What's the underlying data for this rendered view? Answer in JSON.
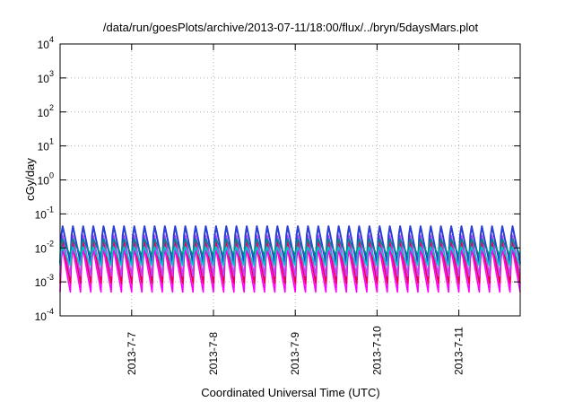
{
  "chart_data": {
    "type": "line",
    "title": "/data/run/goesPlots/archive/2013-07-11/18:00/flux/../bryn/5daysMars.plot",
    "xlabel": "Coordinated Universal Time (UTC)",
    "ylabel": "cGy/day",
    "y_scale": "log",
    "ylim": [
      0.0001,
      10000
    ],
    "y_ticks": [
      {
        "base": "10",
        "exp": "-4"
      },
      {
        "base": "10",
        "exp": "-3"
      },
      {
        "base": "10",
        "exp": "-2"
      },
      {
        "base": "10",
        "exp": "-1"
      },
      {
        "base": "10",
        "exp": "0"
      },
      {
        "base": "10",
        "exp": "1"
      },
      {
        "base": "10",
        "exp": "2"
      },
      {
        "base": "10",
        "exp": "3"
      },
      {
        "base": "10",
        "exp": "4"
      }
    ],
    "x_range": [
      "2013-07-06 03:00",
      "2013-07-11 18:00"
    ],
    "x_ticks": [
      "2013-7-7",
      "2013-7-8",
      "2013-7-9",
      "2013-7-10",
      "2013-7-11"
    ],
    "grid": true,
    "legend": "none",
    "sawtooth_period_hours": 3,
    "series": [
      {
        "color": "#ff00ff",
        "peak": 0.012,
        "trough": 0.0005
      },
      {
        "color": "#e8004a",
        "peak": 0.02,
        "trough": 0.0009
      },
      {
        "color": "#c040ff",
        "peak": 0.03,
        "trough": 0.0015
      },
      {
        "color": "#2a3fd6",
        "peak": 0.055,
        "trough": 0.0035
      },
      {
        "color": "#008b8b",
        "peak": 0.02,
        "trough": 0.006
      },
      {
        "color": "#00c8c8",
        "peak": 0.012,
        "trough": 0.003
      }
    ]
  }
}
